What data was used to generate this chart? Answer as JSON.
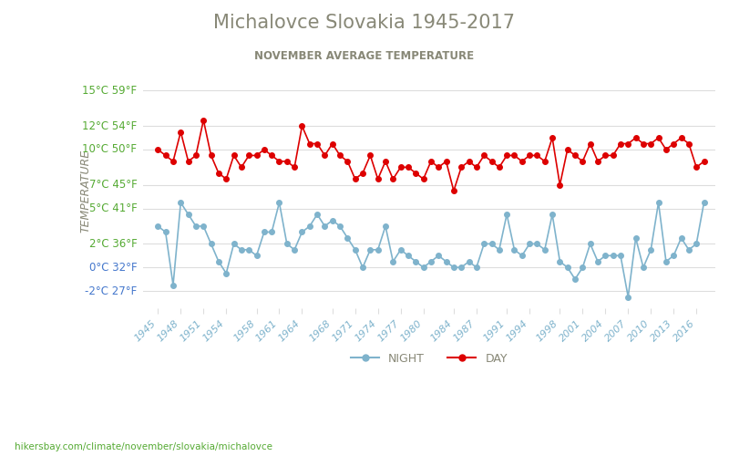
{
  "title": "Michalovce Slovakia 1945-2017",
  "subtitle": "NOVEMBER AVERAGE TEMPERATURE",
  "ylabel": "TEMPERATURE",
  "x_label_url": "hikersbay.com/climate/november/slovakia/michalovce",
  "years": [
    1945,
    1946,
    1947,
    1948,
    1949,
    1950,
    1951,
    1952,
    1953,
    1954,
    1955,
    1956,
    1957,
    1958,
    1959,
    1960,
    1961,
    1962,
    1963,
    1964,
    1965,
    1966,
    1967,
    1968,
    1969,
    1970,
    1971,
    1972,
    1973,
    1974,
    1975,
    1976,
    1977,
    1978,
    1979,
    1980,
    1981,
    1982,
    1983,
    1984,
    1985,
    1986,
    1987,
    1988,
    1989,
    1990,
    1991,
    1992,
    1993,
    1994,
    1995,
    1996,
    1997,
    1998,
    1999,
    2000,
    2001,
    2002,
    2003,
    2004,
    2005,
    2006,
    2007,
    2008,
    2009,
    2010,
    2011,
    2012,
    2013,
    2014,
    2015,
    2016,
    2017
  ],
  "day": [
    10.0,
    9.5,
    9.0,
    11.5,
    9.0,
    9.5,
    12.5,
    9.5,
    8.0,
    7.5,
    9.5,
    8.5,
    9.5,
    9.5,
    10.0,
    9.5,
    9.0,
    9.0,
    8.5,
    12.0,
    10.5,
    10.5,
    9.5,
    10.5,
    9.5,
    9.0,
    7.5,
    8.0,
    9.5,
    7.5,
    9.0,
    7.5,
    8.5,
    8.5,
    8.0,
    7.5,
    9.0,
    8.5,
    9.0,
    6.5,
    8.5,
    9.0,
    8.5,
    9.5,
    9.0,
    8.5,
    9.5,
    9.5,
    9.0,
    9.5,
    9.5,
    9.0,
    11.0,
    7.0,
    10.0,
    9.5,
    9.0,
    10.5,
    9.0,
    9.5,
    9.5,
    10.5,
    10.5,
    11.0,
    10.5,
    10.5,
    11.0,
    10.0,
    10.5,
    11.0,
    10.5,
    8.5,
    9.0
  ],
  "night": [
    3.5,
    3.0,
    -1.5,
    5.5,
    4.5,
    3.5,
    3.5,
    2.0,
    0.5,
    -0.5,
    2.0,
    1.5,
    1.5,
    1.0,
    3.0,
    3.0,
    5.5,
    2.0,
    1.5,
    3.0,
    3.5,
    4.5,
    3.5,
    4.0,
    3.5,
    2.5,
    1.5,
    0.0,
    1.5,
    1.5,
    3.5,
    0.5,
    1.5,
    1.0,
    0.5,
    0.0,
    0.5,
    1.0,
    0.5,
    0.0,
    0.0,
    0.5,
    0.0,
    2.0,
    2.0,
    1.5,
    4.5,
    1.5,
    1.0,
    2.0,
    2.0,
    1.5,
    4.5,
    0.5,
    0.0,
    -1.0,
    0.0,
    2.0,
    0.5,
    1.0,
    1.0,
    1.0,
    -2.5,
    2.5,
    0.0,
    1.5,
    5.5,
    0.5,
    1.0,
    2.5,
    1.5,
    2.0,
    5.5
  ],
  "yticks_c": [
    -2,
    0,
    2,
    5,
    7,
    10,
    12,
    15
  ],
  "yticks_f": [
    27,
    32,
    36,
    41,
    45,
    50,
    54,
    59
  ],
  "yticks_colors": [
    "#4477cc",
    "#4477cc",
    "#55aa33",
    "#55aa33",
    "#55aa33",
    "#55aa33",
    "#55aa33",
    "#55aa33"
  ],
  "ylim": [
    -3.5,
    16.5
  ],
  "day_color": "#dd0000",
  "night_color": "#7fb3cc",
  "bg_color": "#ffffff",
  "grid_color": "#dddddd",
  "title_color": "#888877",
  "subtitle_color": "#888877",
  "ylabel_color": "#888877",
  "tick_color": "#7fb3cc",
  "url_color": "#55aa33",
  "legend_night": "NIGHT",
  "legend_day": "DAY",
  "xtick_years": [
    1945,
    1948,
    1951,
    1954,
    1958,
    1961,
    1964,
    1968,
    1971,
    1974,
    1977,
    1980,
    1984,
    1987,
    1991,
    1994,
    1998,
    2001,
    2004,
    2007,
    2010,
    2013,
    2016
  ]
}
